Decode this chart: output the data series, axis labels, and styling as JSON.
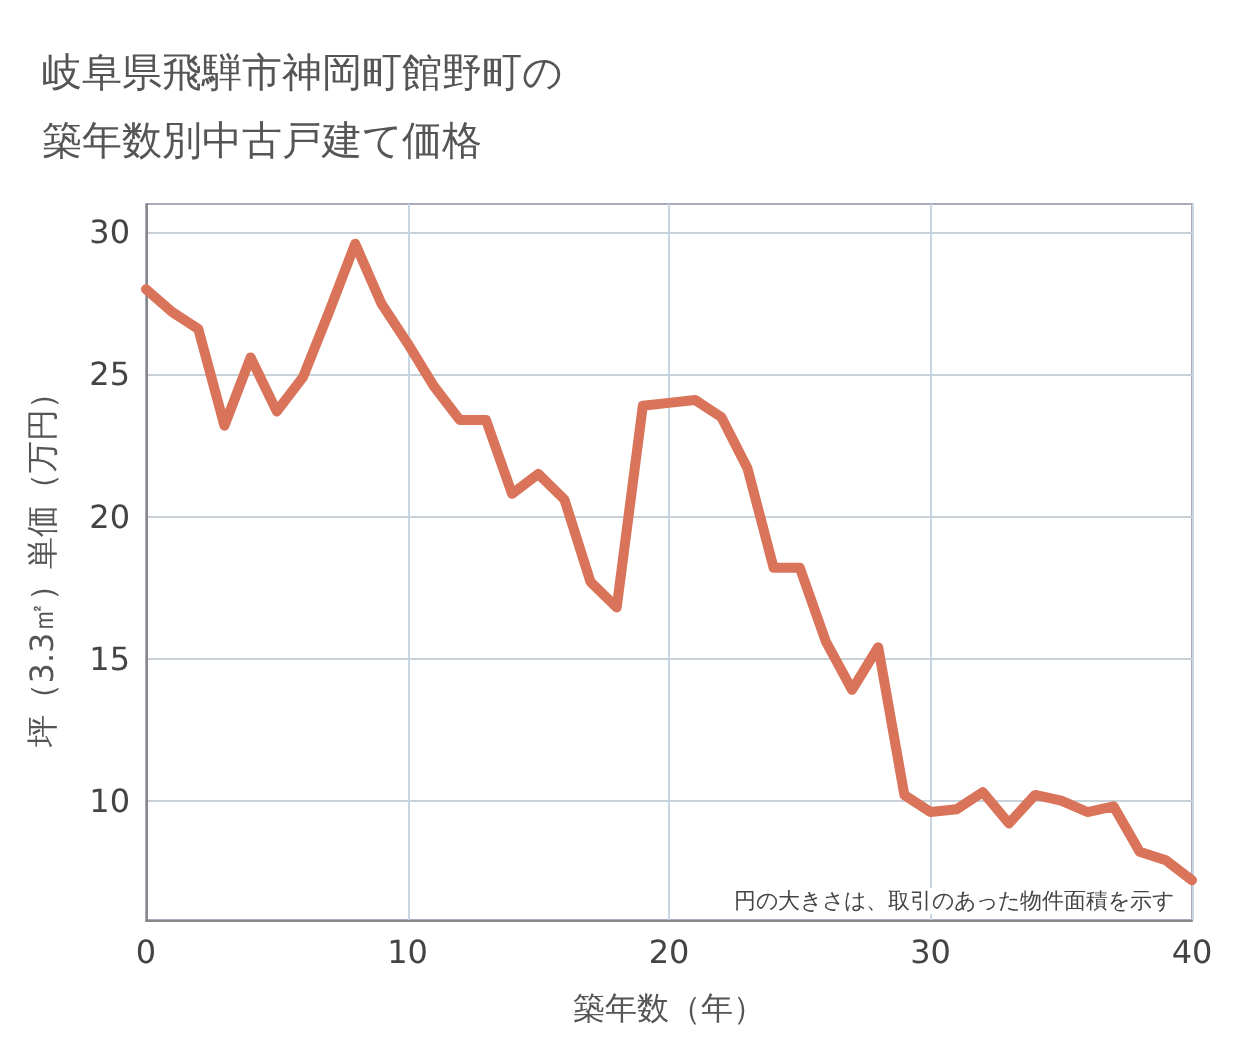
{
  "chart_data": {
    "type": "line",
    "title": "岐阜県飛騨市神岡町館野町の築年数別中古戸建て価格",
    "xlabel": "築年数（年）",
    "ylabel": "坪（3.3㎡）単価（万円）",
    "x": [
      0,
      1,
      2,
      3,
      4,
      5,
      6,
      7,
      8,
      9,
      10,
      11,
      12,
      13,
      14,
      15,
      16,
      17,
      18,
      19,
      20,
      21,
      22,
      23,
      24,
      25,
      26,
      27,
      28,
      29,
      30,
      31,
      32,
      33,
      34,
      35,
      36,
      37,
      38,
      39,
      40
    ],
    "series": [
      {
        "color": "#d9735a",
        "values": [
          28.0,
          27.2,
          26.6,
          23.2,
          25.6,
          23.7,
          24.9,
          27.2,
          29.6,
          27.5,
          26.1,
          24.6,
          23.4,
          23.4,
          20.8,
          21.5,
          20.6,
          17.7,
          16.8,
          23.9,
          24.0,
          24.1,
          23.5,
          21.7,
          18.2,
          18.2,
          15.6,
          13.9,
          15.4,
          10.2,
          9.6,
          9.7,
          10.3,
          9.2,
          10.2,
          10.0,
          9.6,
          9.8,
          8.2,
          7.9,
          7.2
        ]
      }
    ],
    "xlim": [
      0,
      40
    ],
    "xticks": [
      0,
      10,
      20,
      30,
      40
    ],
    "ylim": [
      5.8,
      31
    ],
    "yticks": [
      10,
      15,
      20,
      25,
      30
    ],
    "grid": true,
    "marker": "none",
    "line_style": "solid",
    "annotations": [
      "円の大きさは、取引のあった物件面積を示す"
    ]
  }
}
